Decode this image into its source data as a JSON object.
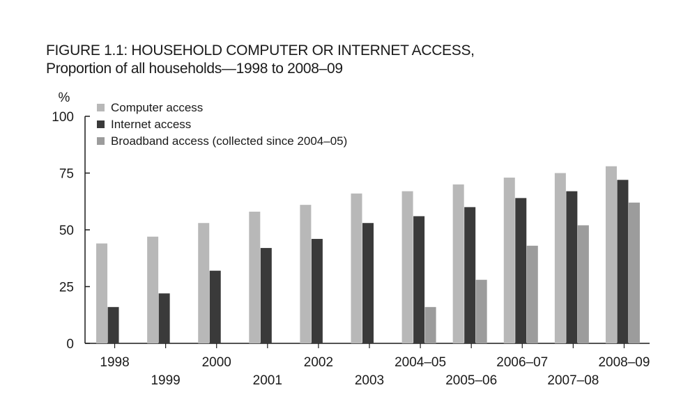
{
  "chart_data": {
    "type": "bar",
    "title": "FIGURE 1.1: HOUSEHOLD COMPUTER OR INTERNET ACCESS,",
    "subtitle": "Proportion of all households—1998 to 2008–09",
    "ylabel": "%",
    "xlabel": "",
    "ylim": [
      0,
      100
    ],
    "yticks": [
      0,
      25,
      50,
      75,
      100
    ],
    "grid": "none",
    "legend_position": "top-left",
    "categories": [
      "1998",
      "1999",
      "2000",
      "2001",
      "2002",
      "2003",
      "2004–05",
      "2005–06",
      "2006–07",
      "2007–08",
      "2008–09"
    ],
    "series": [
      {
        "name": "Computer access",
        "color": "#b8b8b8",
        "values": [
          44,
          47,
          53,
          58,
          61,
          66,
          67,
          70,
          73,
          75,
          78
        ]
      },
      {
        "name": "Internet access",
        "color": "#3a3a3a",
        "values": [
          16,
          22,
          32,
          42,
          46,
          53,
          56,
          60,
          64,
          67,
          72
        ]
      },
      {
        "name": "Broadband access (collected since 2004–05)",
        "color": "#9c9c9c",
        "values": [
          null,
          null,
          null,
          null,
          null,
          null,
          16,
          28,
          43,
          52,
          62
        ]
      }
    ]
  }
}
